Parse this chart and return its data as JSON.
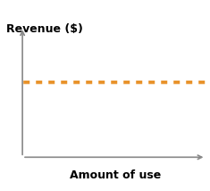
{
  "title": "",
  "ylabel": "Revenue ($)",
  "xlabel": "Amount of use",
  "line_y": 0.58,
  "line_color": "#E8922A",
  "line_width": 2.8,
  "background_color": "#ffffff",
  "axis_color": "#888888",
  "axis_lw": 1.2,
  "label_fontsize": 9,
  "label_fontweight": "bold",
  "arrow_mutation_scale": 8,
  "xlim": [
    0,
    1
  ],
  "ylim": [
    0,
    1
  ],
  "x_axis_start": 0.08,
  "y_axis_bottom": 0.05,
  "y_axis_top": 0.97,
  "x_axis_end": 0.99,
  "line_x_start": 0.085,
  "line_x_end": 1.0,
  "dash_on": 1.8,
  "dash_off": 1.8
}
